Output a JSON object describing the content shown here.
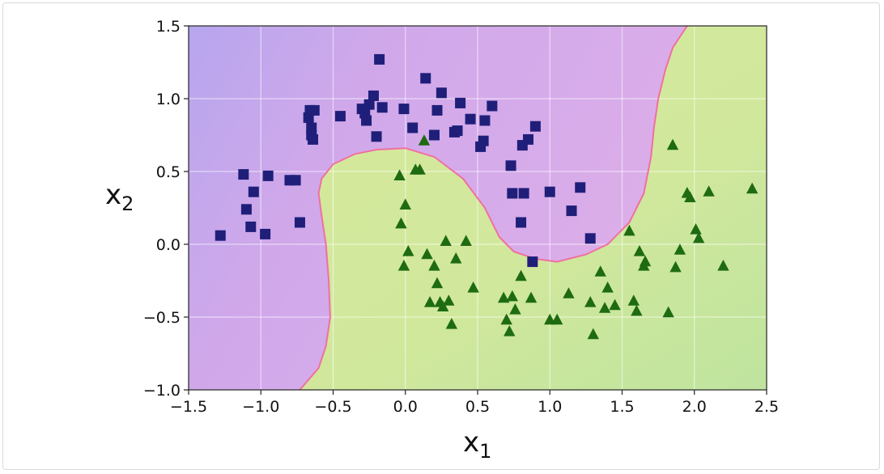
{
  "chart_data": {
    "type": "scatter",
    "title": "",
    "xlabel": "x",
    "xlabel_sub": "1",
    "ylabel": "x",
    "ylabel_sub": "2",
    "xlim": [
      -1.5,
      2.5
    ],
    "ylim": [
      -1.0,
      1.5
    ],
    "xticks": [
      "−1.5",
      "−1.0",
      "−0.5",
      "0.0",
      "0.5",
      "1.0",
      "1.5",
      "2.0",
      "2.5"
    ],
    "yticks": [
      "−1.0",
      "−0.5",
      "0.0",
      "0.5",
      "1.0",
      "1.5"
    ],
    "grid": true,
    "legend": "none",
    "decision_boundary": {
      "x": [
        -0.73,
        -0.6,
        -0.55,
        -0.52,
        -0.53,
        -0.55,
        -0.58,
        -0.6,
        -0.58,
        -0.5,
        -0.35,
        -0.2,
        0.0,
        0.2,
        0.4,
        0.55,
        0.65,
        0.75,
        0.9,
        1.05,
        1.25,
        1.4,
        1.55,
        1.65,
        1.7,
        1.72,
        1.75,
        1.8,
        1.85,
        1.95
      ],
      "y": [
        -1.0,
        -0.85,
        -0.7,
        -0.5,
        -0.25,
        0.0,
        0.2,
        0.35,
        0.45,
        0.55,
        0.62,
        0.65,
        0.66,
        0.6,
        0.45,
        0.25,
        0.05,
        -0.05,
        -0.1,
        -0.12,
        -0.07,
        0.0,
        0.15,
        0.35,
        0.6,
        0.8,
        1.0,
        1.2,
        1.35,
        1.5
      ]
    },
    "colors": {
      "class0_region": "#d4a8ea",
      "class1_region": "#d3e89b",
      "class0_marker": "#1f1f7a",
      "class1_marker": "#1e6b12",
      "boundary": "#f070a0"
    },
    "series": [
      {
        "marker": "square",
        "color": "#1f1f7a",
        "x": [
          -1.28,
          -1.12,
          -1.1,
          -1.07,
          -1.05,
          -0.97,
          -0.95,
          -0.8,
          -0.76,
          -0.73,
          -0.67,
          -0.66,
          -0.65,
          -0.65,
          -0.64,
          -0.63,
          -0.45,
          -0.3,
          -0.28,
          -0.27,
          -0.25,
          -0.22,
          -0.2,
          -0.18,
          -0.16,
          -0.01,
          0.05,
          0.14,
          0.2,
          0.22,
          0.25,
          0.34,
          0.36,
          0.38,
          0.45,
          0.52,
          0.54,
          0.55,
          0.6,
          0.73,
          0.74,
          0.8,
          0.81,
          0.82,
          0.85,
          0.88,
          0.9,
          1.0,
          1.15,
          1.21,
          1.28
        ],
        "y": [
          0.06,
          0.48,
          0.24,
          0.12,
          0.36,
          0.07,
          0.47,
          0.44,
          0.44,
          0.15,
          0.87,
          0.92,
          0.8,
          0.75,
          0.72,
          0.92,
          0.88,
          0.93,
          0.9,
          0.85,
          0.96,
          1.02,
          0.74,
          1.27,
          0.94,
          0.93,
          0.8,
          1.14,
          0.75,
          0.92,
          1.04,
          0.77,
          0.78,
          0.97,
          0.86,
          0.67,
          0.71,
          0.85,
          0.95,
          0.54,
          0.35,
          0.15,
          0.68,
          0.35,
          0.72,
          -0.12,
          0.81,
          0.36,
          0.23,
          0.39,
          0.04
        ]
      },
      {
        "marker": "triangle",
        "color": "#1e6b12",
        "x": [
          -0.04,
          -0.03,
          -0.01,
          0.0,
          0.02,
          0.07,
          0.1,
          0.13,
          0.15,
          0.17,
          0.2,
          0.22,
          0.24,
          0.26,
          0.28,
          0.3,
          0.32,
          0.35,
          0.42,
          0.47,
          0.68,
          0.7,
          0.72,
          0.74,
          0.76,
          0.8,
          0.87,
          1.0,
          1.05,
          1.13,
          1.28,
          1.3,
          1.35,
          1.38,
          1.4,
          1.45,
          1.55,
          1.58,
          1.6,
          1.62,
          1.65,
          1.66,
          1.82,
          1.85,
          1.87,
          1.9,
          1.95,
          1.97,
          2.01,
          2.03,
          2.1,
          2.2,
          2.4
        ],
        "y": [
          0.47,
          0.14,
          -0.15,
          0.27,
          -0.05,
          0.51,
          0.51,
          0.71,
          -0.07,
          -0.4,
          -0.15,
          -0.27,
          -0.4,
          -0.43,
          0.02,
          -0.39,
          -0.55,
          -0.1,
          0.02,
          -0.3,
          -0.37,
          -0.52,
          -0.6,
          -0.36,
          -0.45,
          -0.22,
          -0.37,
          -0.52,
          -0.52,
          -0.34,
          -0.4,
          -0.62,
          -0.19,
          -0.44,
          -0.3,
          -0.42,
          0.09,
          -0.39,
          -0.46,
          -0.05,
          -0.15,
          -0.12,
          -0.47,
          0.68,
          -0.16,
          -0.04,
          0.35,
          0.32,
          0.1,
          0.04,
          0.36,
          -0.15,
          0.38
        ]
      }
    ]
  }
}
